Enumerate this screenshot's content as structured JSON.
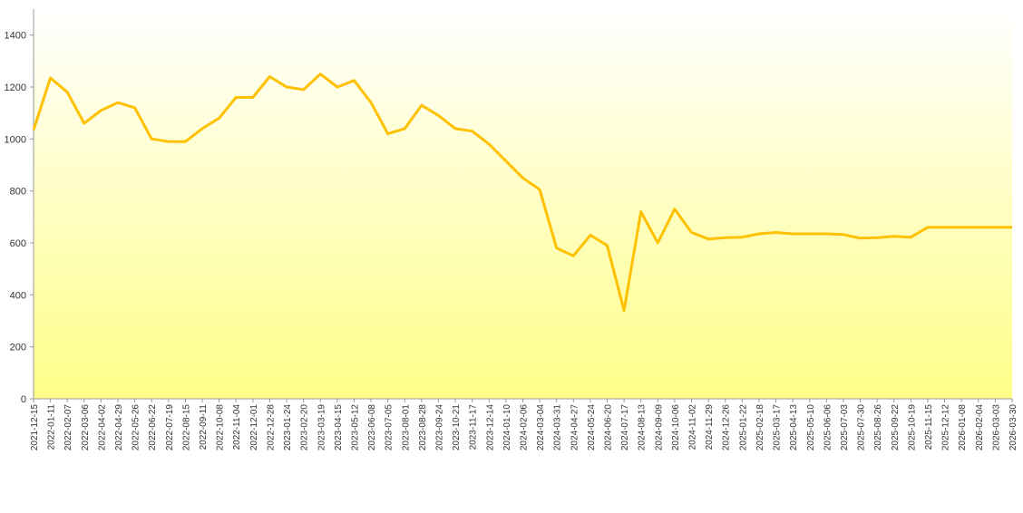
{
  "chart_data": {
    "type": "line",
    "categories": [
      "2021-12-15",
      "2022-01-11",
      "2022-02-07",
      "2022-03-06",
      "2022-04-02",
      "2022-04-29",
      "2022-05-26",
      "2022-06-22",
      "2022-07-19",
      "2022-08-15",
      "2022-09-11",
      "2022-10-08",
      "2022-11-04",
      "2022-12-01",
      "2022-12-28",
      "2023-01-24",
      "2023-02-20",
      "2023-03-19",
      "2023-04-15",
      "2023-05-12",
      "2023-06-08",
      "2023-07-05",
      "2023-08-01",
      "2023-08-28",
      "2023-09-24",
      "2023-10-21",
      "2023-11-17",
      "2023-12-14",
      "2024-01-10",
      "2024-02-06",
      "2024-03-04",
      "2024-03-31",
      "2024-04-27",
      "2024-05-24",
      "2024-06-20",
      "2024-07-17",
      "2024-08-13",
      "2024-09-09",
      "2024-10-06",
      "2024-11-02",
      "2024-11-29",
      "2024-12-26",
      "2025-01-22",
      "2025-02-18",
      "2025-03-17",
      "2025-04-13",
      "2025-05-10",
      "2025-06-06",
      "2025-07-03",
      "2025-07-30",
      "2025-08-26",
      "2025-09-22",
      "2025-10-19",
      "2025-11-15",
      "2025-12-12",
      "2026-01-08",
      "2026-02-04",
      "2026-03-03",
      "2026-03-30"
    ],
    "values": [
      1035,
      1235,
      1180,
      1060,
      1110,
      1140,
      1120,
      1000,
      990,
      990,
      1040,
      1080,
      1160,
      1160,
      1240,
      1200,
      1190,
      1250,
      1200,
      1225,
      1140,
      1020,
      1040,
      1130,
      1090,
      1040,
      1030,
      980,
      915,
      850,
      805,
      580,
      550,
      630,
      590,
      340,
      720,
      600,
      730,
      640,
      615,
      620,
      622,
      635,
      640,
      635,
      635,
      635,
      632,
      618,
      620,
      625,
      622,
      660,
      660,
      660,
      660,
      660,
      660
    ],
    "color": "#ffc000",
    "ylim": [
      0,
      1500
    ],
    "yticks": [
      0,
      200,
      400,
      600,
      800,
      1000,
      1200,
      1400
    ]
  }
}
